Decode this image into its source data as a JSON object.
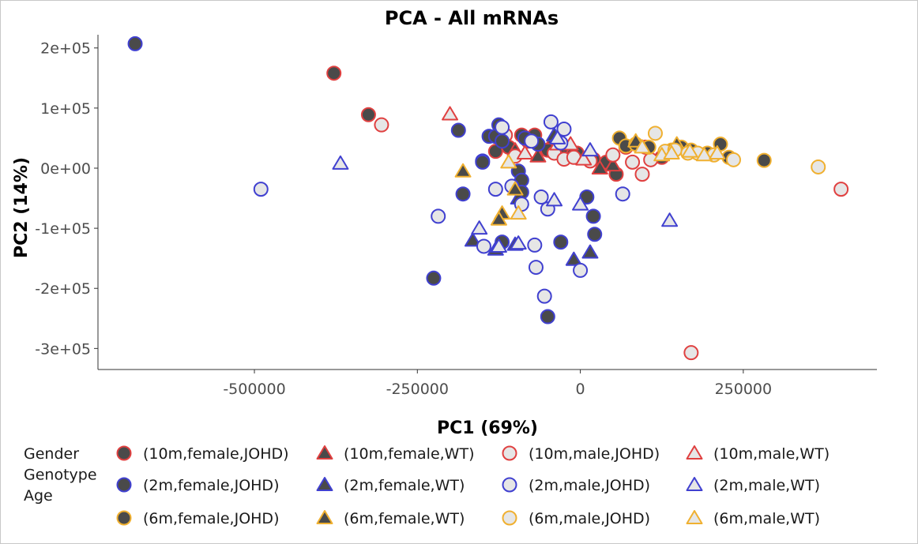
{
  "chart_data": {
    "type": "scatter",
    "title": "PCA - All mRNAs",
    "xlabel": "PC1 (69%)",
    "ylabel": "PC2 (14%)",
    "xlim": [
      -740000,
      455000
    ],
    "ylim": [
      -335000,
      222000
    ],
    "x_ticks": [
      {
        "value": -500000,
        "label": "-500000"
      },
      {
        "value": -250000,
        "label": "-250000"
      },
      {
        "value": 0,
        "label": "0"
      },
      {
        "value": 250000,
        "label": "250000"
      }
    ],
    "y_ticks": [
      {
        "value": 200000,
        "label": "2e+05"
      },
      {
        "value": 100000,
        "label": "1e+05"
      },
      {
        "value": 0,
        "label": "0e+00"
      },
      {
        "value": -100000,
        "label": "-1e+05"
      },
      {
        "value": -200000,
        "label": "-2e+05"
      },
      {
        "value": -300000,
        "label": "-3e+05"
      }
    ],
    "grid": false,
    "legend": {
      "position": "bottom",
      "title_lines": [
        "Gender",
        "Genotype",
        "Age"
      ]
    },
    "series": [
      {
        "name": "(10m,female,JOHD)",
        "color": "#e04040",
        "shape": "circle",
        "fill": "dark",
        "points": [
          [
            -378000,
            158000
          ],
          [
            -325000,
            89000
          ],
          [
            -130000,
            28000
          ],
          [
            -110000,
            35000
          ],
          [
            -90000,
            55000
          ],
          [
            -70000,
            55000
          ],
          [
            -50000,
            30000
          ],
          [
            -20000,
            30000
          ],
          [
            -5000,
            25000
          ],
          [
            20000,
            15000
          ],
          [
            40000,
            10000
          ],
          [
            55000,
            -10000
          ],
          [
            70000,
            35000
          ],
          [
            100000,
            35000
          ],
          [
            125000,
            18000
          ]
        ]
      },
      {
        "name": "(10m,female,WT)",
        "color": "#e04040",
        "shape": "triangle",
        "fill": "dark",
        "points": [
          [
            -100000,
            30000
          ],
          [
            -65000,
            20000
          ],
          [
            -40000,
            50000
          ],
          [
            -15000,
            25000
          ],
          [
            30000,
            0
          ],
          [
            50000,
            5000
          ]
        ]
      },
      {
        "name": "(10m,male,JOHD)",
        "color": "#e04040",
        "shape": "circle",
        "fill": "light",
        "points": [
          [
            -305000,
            72000
          ],
          [
            -115000,
            55000
          ],
          [
            -100000,
            20000
          ],
          [
            -80000,
            45000
          ],
          [
            -40000,
            25000
          ],
          [
            -25000,
            15000
          ],
          [
            -10000,
            18000
          ],
          [
            15000,
            12000
          ],
          [
            50000,
            22000
          ],
          [
            80000,
            10000
          ],
          [
            95000,
            -10000
          ],
          [
            108000,
            14000
          ],
          [
            170000,
            -307000
          ],
          [
            400000,
            -35000
          ]
        ]
      },
      {
        "name": "(10m,male,WT)",
        "color": "#e04040",
        "shape": "triangle",
        "fill": "light",
        "points": [
          [
            -200000,
            90000
          ],
          [
            -85000,
            25000
          ],
          [
            -35000,
            40000
          ],
          [
            -15000,
            40000
          ],
          [
            5000,
            15000
          ]
        ]
      },
      {
        "name": "(2m,female,JOHD)",
        "color": "#4040d0",
        "shape": "circle",
        "fill": "dark",
        "points": [
          [
            -683000,
            207000
          ],
          [
            -187000,
            63000
          ],
          [
            -180000,
            -43000
          ],
          [
            -150000,
            12000
          ],
          [
            -140000,
            53000
          ],
          [
            -125000,
            72000
          ],
          [
            -130000,
            53000
          ],
          [
            -120000,
            45000
          ],
          [
            -95000,
            -5000
          ],
          [
            -90000,
            -20000
          ],
          [
            -90000,
            -40000
          ],
          [
            -85000,
            50000
          ],
          [
            -65000,
            40000
          ],
          [
            -50000,
            -247000
          ],
          [
            -30000,
            -123000
          ],
          [
            10000,
            -48000
          ],
          [
            20000,
            -80000
          ],
          [
            22000,
            -110000
          ],
          [
            -225000,
            -183000
          ],
          [
            -120000,
            -123000
          ],
          [
            -150000,
            10000
          ]
        ]
      },
      {
        "name": "(2m,female,WT)",
        "color": "#4040d0",
        "shape": "triangle",
        "fill": "dark",
        "points": [
          [
            -165000,
            -120000
          ],
          [
            -130000,
            -135000
          ],
          [
            -100000,
            -127000
          ],
          [
            -40000,
            55000
          ],
          [
            -10000,
            -152000
          ],
          [
            15000,
            -140000
          ],
          [
            -95000,
            -50000
          ]
        ]
      },
      {
        "name": "(2m,male,JOHD)",
        "color": "#4040d0",
        "shape": "circle",
        "fill": "light",
        "points": [
          [
            -490000,
            -35000
          ],
          [
            -218000,
            -80000
          ],
          [
            -148000,
            -130000
          ],
          [
            -130000,
            -35000
          ],
          [
            -105000,
            -30000
          ],
          [
            -90000,
            -60000
          ],
          [
            -75000,
            45000
          ],
          [
            -70000,
            -128000
          ],
          [
            -68000,
            -165000
          ],
          [
            -60000,
            -48000
          ],
          [
            -55000,
            -213000
          ],
          [
            -50000,
            -68000
          ],
          [
            -45000,
            77000
          ],
          [
            -30000,
            42000
          ],
          [
            -25000,
            65000
          ],
          [
            0,
            -170000
          ],
          [
            65000,
            -43000
          ],
          [
            -120000,
            68000
          ]
        ]
      },
      {
        "name": "(2m,male,WT)",
        "color": "#4040d0",
        "shape": "triangle",
        "fill": "light",
        "points": [
          [
            -368000,
            8000
          ],
          [
            -155000,
            -100000
          ],
          [
            -125000,
            -130000
          ],
          [
            -95000,
            -125000
          ],
          [
            -40000,
            -53000
          ],
          [
            0,
            -60000
          ],
          [
            15000,
            30000
          ],
          [
            137000,
            -87000
          ],
          [
            -35000,
            50000
          ]
        ]
      },
      {
        "name": "(6m,female,JOHD)",
        "color": "#f0b030",
        "shape": "circle",
        "fill": "dark",
        "points": [
          [
            60000,
            50000
          ],
          [
            70000,
            37000
          ],
          [
            85000,
            40000
          ],
          [
            105000,
            35000
          ],
          [
            140000,
            30000
          ],
          [
            155000,
            35000
          ],
          [
            170000,
            30000
          ],
          [
            195000,
            25000
          ],
          [
            215000,
            40000
          ],
          [
            228000,
            18000
          ],
          [
            282000,
            13000
          ]
        ]
      },
      {
        "name": "(6m,female,WT)",
        "color": "#f0b030",
        "shape": "triangle",
        "fill": "dark",
        "points": [
          [
            -180000,
            -5000
          ],
          [
            -120000,
            -75000
          ],
          [
            -125000,
            -85000
          ],
          [
            -100000,
            -35000
          ],
          [
            85000,
            45000
          ],
          [
            148000,
            40000
          ]
        ]
      },
      {
        "name": "(6m,male,JOHD)",
        "color": "#f0b030",
        "shape": "circle",
        "fill": "light",
        "points": [
          [
            115000,
            58000
          ],
          [
            130000,
            28000
          ],
          [
            145000,
            30000
          ],
          [
            165000,
            25000
          ],
          [
            180000,
            25000
          ],
          [
            205000,
            22000
          ],
          [
            235000,
            14000
          ],
          [
            365000,
            2000
          ]
        ]
      },
      {
        "name": "(6m,male,WT)",
        "color": "#f0b030",
        "shape": "triangle",
        "fill": "light",
        "points": [
          [
            -110000,
            10000
          ],
          [
            -95000,
            -75000
          ],
          [
            95000,
            35000
          ],
          [
            125000,
            22000
          ],
          [
            140000,
            25000
          ],
          [
            168000,
            28000
          ],
          [
            190000,
            22000
          ],
          [
            210000,
            25000
          ]
        ]
      }
    ]
  }
}
